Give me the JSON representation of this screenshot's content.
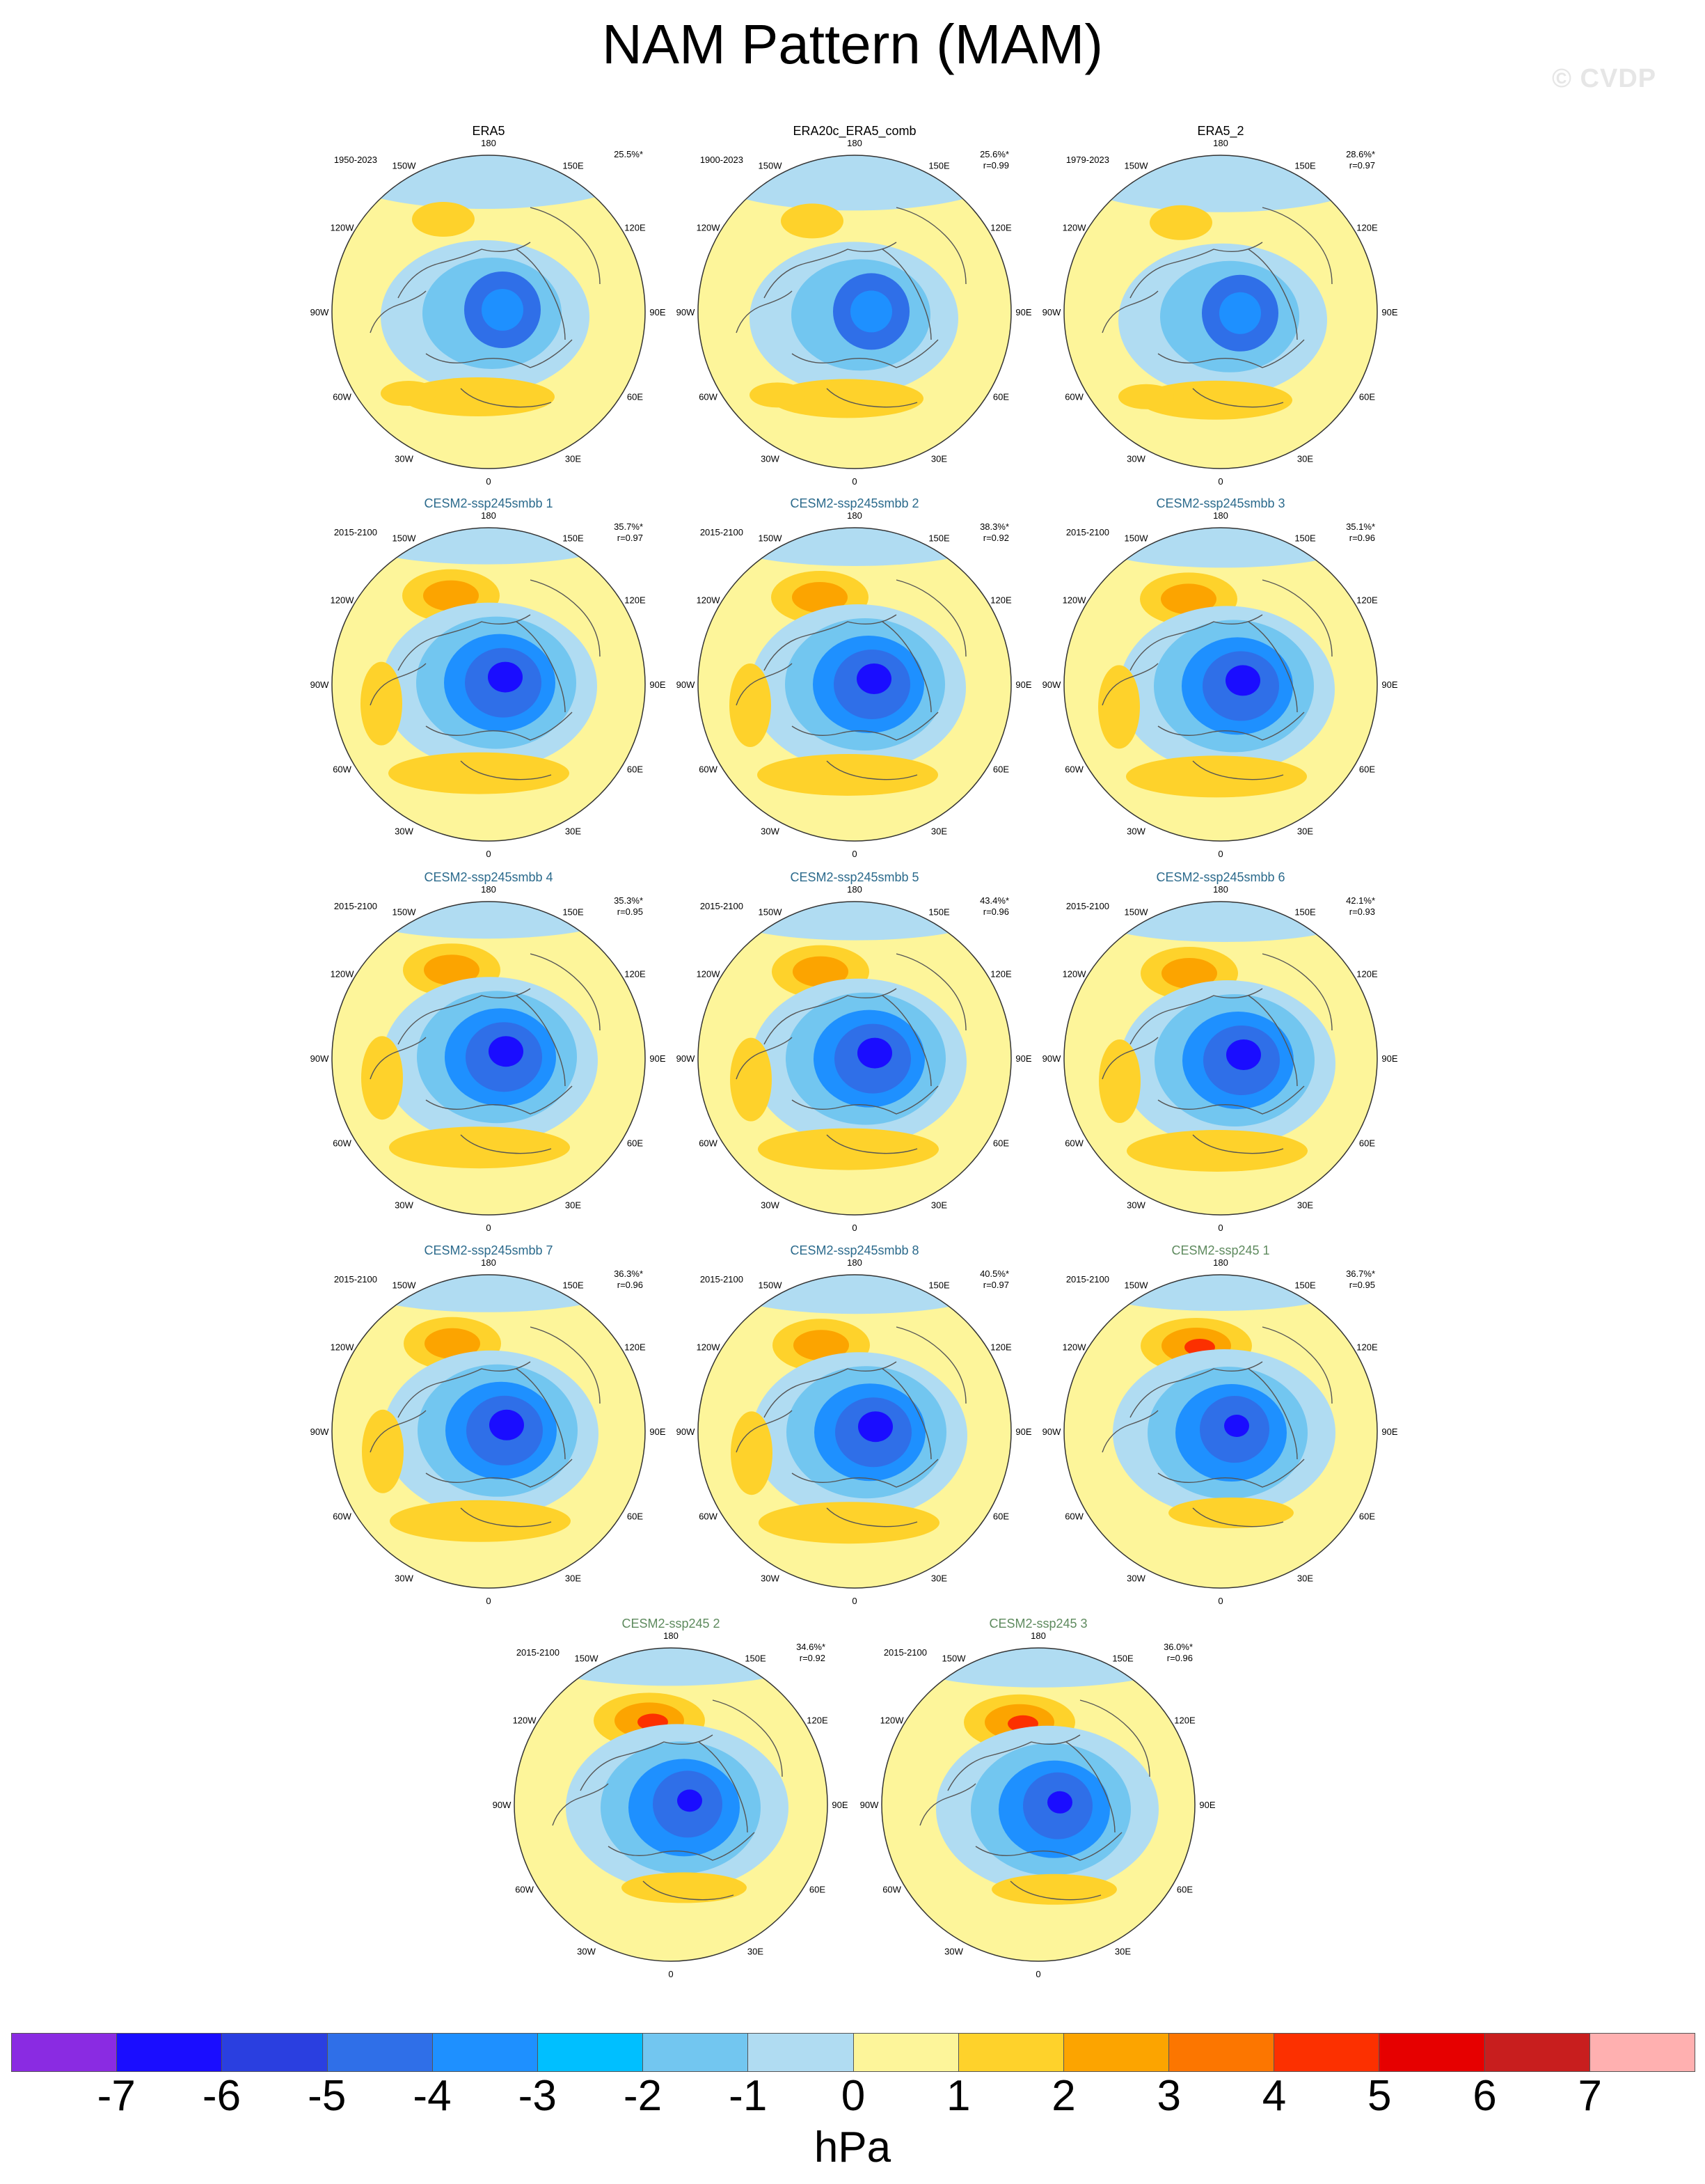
{
  "title": "NAM Pattern (MAM)",
  "watermark": "© CVDP",
  "lon_labels": [
    "180",
    "150E",
    "120E",
    "90E",
    "60E",
    "30E",
    "0",
    "30W",
    "60W",
    "90W",
    "120W",
    "150W"
  ],
  "colors": {
    "obs_title": "#000000",
    "smbb_title": "#2b6a8c",
    "ssp245_title": "#5e8a5e",
    "ocean_fill": "#fdf59a",
    "coast": "#555555"
  },
  "panels": [
    {
      "title": "ERA5",
      "group": "obs",
      "period": "1950-2023",
      "pct": "25.5%*",
      "r": ""
    },
    {
      "title": "ERA20c_ERA5_comb",
      "group": "obs",
      "period": "1900-2023",
      "pct": "25.6%*",
      "r": "r=0.99"
    },
    {
      "title": "ERA5_2",
      "group": "obs",
      "period": "1979-2023",
      "pct": "28.6%*",
      "r": "r=0.97"
    },
    {
      "title": "CESM2-ssp245smbb 1",
      "group": "smbb",
      "period": "2015-2100",
      "pct": "35.7%*",
      "r": "r=0.97"
    },
    {
      "title": "CESM2-ssp245smbb 2",
      "group": "smbb",
      "period": "2015-2100",
      "pct": "38.3%*",
      "r": "r=0.92"
    },
    {
      "title": "CESM2-ssp245smbb 3",
      "group": "smbb",
      "period": "2015-2100",
      "pct": "35.1%*",
      "r": "r=0.96"
    },
    {
      "title": "CESM2-ssp245smbb 4",
      "group": "smbb",
      "period": "2015-2100",
      "pct": "35.3%*",
      "r": "r=0.95"
    },
    {
      "title": "CESM2-ssp245smbb 5",
      "group": "smbb",
      "period": "2015-2100",
      "pct": "43.4%*",
      "r": "r=0.96"
    },
    {
      "title": "CESM2-ssp245smbb 6",
      "group": "smbb",
      "period": "2015-2100",
      "pct": "42.1%*",
      "r": "r=0.93"
    },
    {
      "title": "CESM2-ssp245smbb 7",
      "group": "smbb",
      "period": "2015-2100",
      "pct": "36.3%*",
      "r": "r=0.96"
    },
    {
      "title": "CESM2-ssp245smbb 8",
      "group": "smbb",
      "period": "2015-2100",
      "pct": "40.5%*",
      "r": "r=0.97"
    },
    {
      "title": "CESM2-ssp245 1",
      "group": "ssp245",
      "period": "2015-2100",
      "pct": "36.7%*",
      "r": "r=0.95"
    },
    {
      "title": "CESM2-ssp245 2",
      "group": "ssp245",
      "period": "2015-2100",
      "pct": "34.6%*",
      "r": "r=0.92"
    },
    {
      "title": "CESM2-ssp245 3",
      "group": "ssp245",
      "period": "2015-2100",
      "pct": "36.0%*",
      "r": "r=0.96"
    }
  ],
  "colorbar": {
    "unit": "hPa",
    "ticks": [
      "-7",
      "-6",
      "-5",
      "-4",
      "-3",
      "-2",
      "-1",
      "0",
      "1",
      "2",
      "3",
      "4",
      "5",
      "6",
      "7"
    ],
    "colors": [
      "#8a2be2",
      "#1a0dff",
      "#2a3fe0",
      "#2f6fe8",
      "#1e90ff",
      "#00bfff",
      "#72c6f0",
      "#b0dcf2",
      "#fdf59a",
      "#fed22b",
      "#fca400",
      "#fc7600",
      "#fc3000",
      "#e60000",
      "#c81e1e",
      "#ffb0b0"
    ]
  }
}
